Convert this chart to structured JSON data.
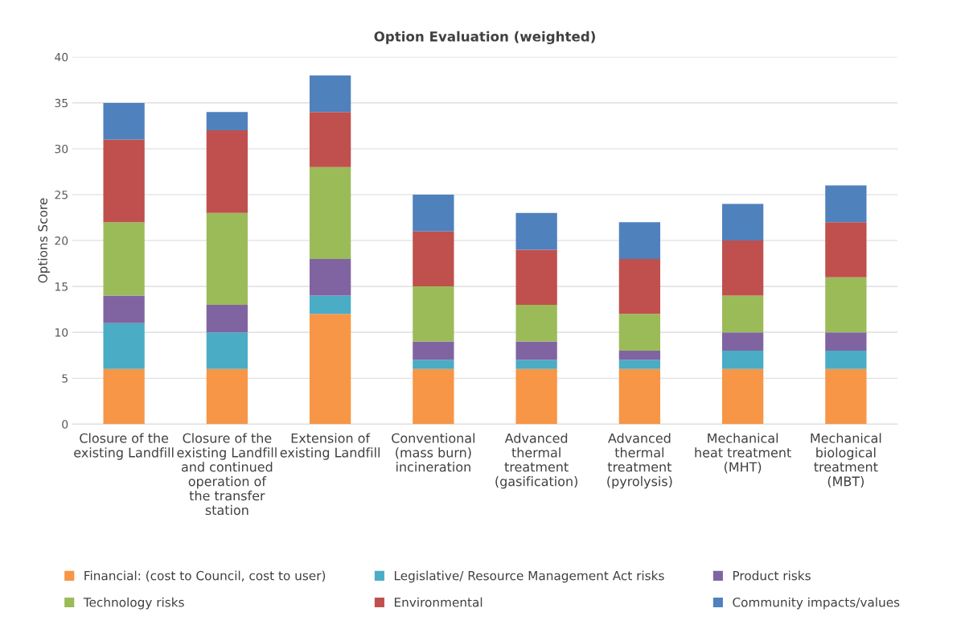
{
  "chart_data": {
    "type": "bar",
    "stacked": true,
    "title": "Option Evaluation (weighted)",
    "ylabel": "Options Score",
    "categories": [
      "Closure of the\nexisting Landfill",
      "Closure of the\nexisting Landfill\nand continued\noperation of\nthe transfer\nstation",
      "Extension of\nexisting Landfill",
      "Conventional\n(mass burn)\nincineration",
      "Advanced\nthermal\ntreatment\n(gasification)",
      "Advanced\nthermal\ntreatment\n(pyrolysis)",
      "Mechanical\nheat treatment\n(MHT)",
      "Mechanical\nbiological\ntreatment\n(MBT)"
    ],
    "series": [
      {
        "name": "Financial: (cost to Council, cost to user)",
        "color": "#f79646",
        "values": [
          6,
          6,
          12,
          6,
          6,
          6,
          6,
          6
        ]
      },
      {
        "name": "Legislative/ Resource Management Act risks",
        "color": "#4bacc6",
        "values": [
          5,
          4,
          2,
          1,
          1,
          1,
          2,
          2
        ]
      },
      {
        "name": "Product risks",
        "color": "#8064a2",
        "values": [
          3,
          3,
          4,
          2,
          2,
          1,
          2,
          2
        ]
      },
      {
        "name": "Technology risks",
        "color": "#9bbb59",
        "values": [
          8,
          10,
          10,
          6,
          4,
          4,
          4,
          6
        ]
      },
      {
        "name": "Environmental",
        "color": "#c0504d",
        "values": [
          9,
          9,
          6,
          6,
          6,
          6,
          6,
          6
        ]
      },
      {
        "name": "Community impacts/values",
        "color": "#4f81bd",
        "values": [
          4,
          2,
          4,
          4,
          4,
          4,
          4,
          4
        ]
      }
    ],
    "ylim": [
      0,
      40
    ],
    "yticks": [
      0,
      5,
      10,
      15,
      20,
      25,
      30,
      35,
      40
    ],
    "grid": "y",
    "legend": "bottom"
  }
}
